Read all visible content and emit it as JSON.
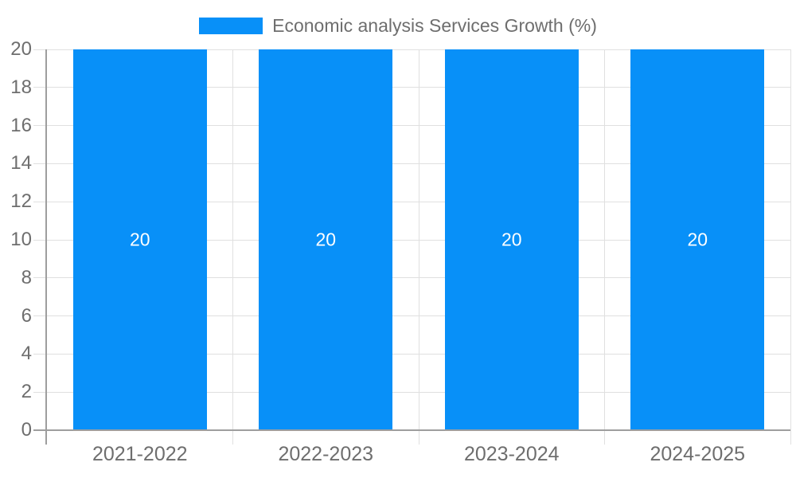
{
  "chart_data": {
    "type": "bar",
    "title": "Economic analysis Services Growth (%)",
    "legend": {
      "label": "Economic analysis Services Growth (%)",
      "position": "top"
    },
    "categories": [
      "2021-2022",
      "2022-2023",
      "2023-2024",
      "2024-2025"
    ],
    "values": [
      20,
      20,
      20,
      20
    ],
    "bar_labels": [
      "20",
      "20",
      "20",
      "20"
    ],
    "xlabel": "",
    "ylabel": "",
    "ylim": [
      0,
      20
    ],
    "yticks": [
      0,
      2,
      4,
      6,
      8,
      10,
      12,
      14,
      16,
      18,
      20
    ],
    "grid": true,
    "colors": {
      "bar": "#0890f8",
      "bar_label": "#ffffff",
      "axis": "#9e9e9e",
      "grid": "#e0e0e0",
      "tick_label": "#6e6e6e"
    }
  }
}
